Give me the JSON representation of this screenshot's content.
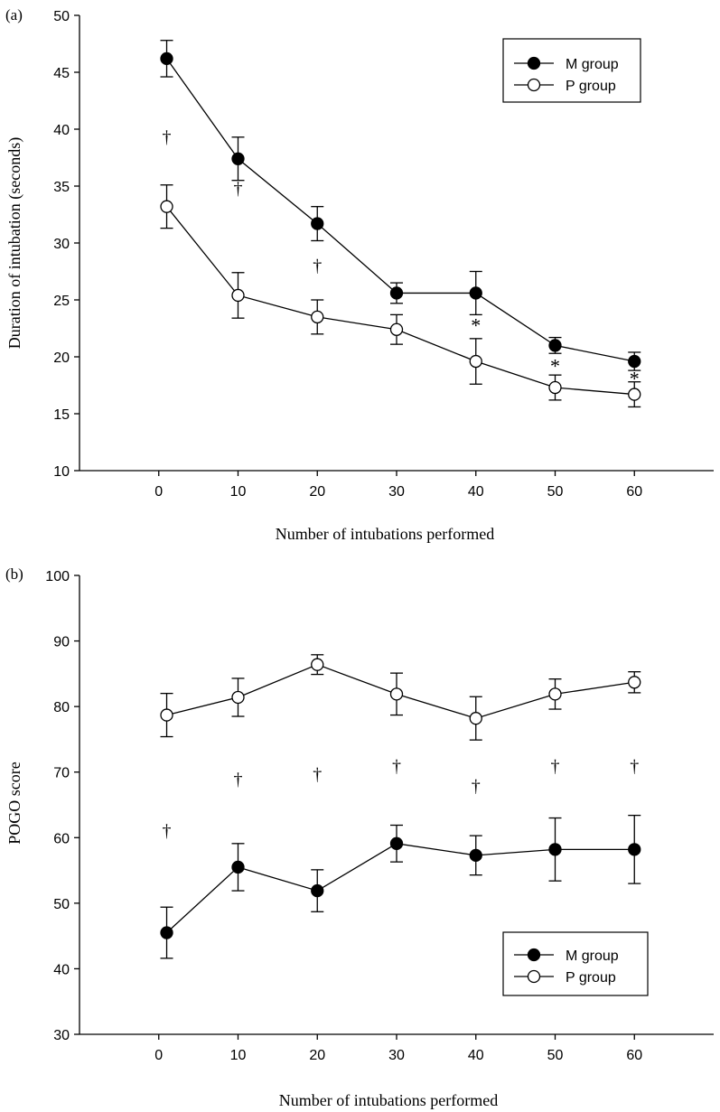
{
  "chart_data": [
    {
      "type": "line",
      "panel_label": "(a)",
      "xlabel": "Number of intubations performed",
      "ylabel": "Duration of intubation (seconds)",
      "xlim": [
        -10,
        70
      ],
      "ylim": [
        10,
        50
      ],
      "x_ticks": [
        0,
        10,
        20,
        30,
        40,
        50,
        60
      ],
      "y_ticks": [
        10,
        15,
        20,
        25,
        30,
        35,
        40,
        45,
        50
      ],
      "legend_position": "top-right",
      "grid": false,
      "series": [
        {
          "name": "M group",
          "marker": "filled-circle",
          "points": [
            {
              "x": 1,
              "y": 46.2,
              "err": 1.6
            },
            {
              "x": 10,
              "y": 37.4,
              "err": 1.9
            },
            {
              "x": 20,
              "y": 31.7,
              "err": 1.5
            },
            {
              "x": 30,
              "y": 25.6,
              "err": 0.9
            },
            {
              "x": 40,
              "y": 25.6,
              "err": 1.9
            },
            {
              "x": 50,
              "y": 21.0,
              "err": 0.7
            },
            {
              "x": 60,
              "y": 19.6,
              "err": 0.8
            }
          ]
        },
        {
          "name": "P group",
          "marker": "open-circle",
          "points": [
            {
              "x": 1,
              "y": 33.2,
              "err": 1.9
            },
            {
              "x": 10,
              "y": 25.4,
              "err": 2.0
            },
            {
              "x": 20,
              "y": 23.5,
              "err": 1.5
            },
            {
              "x": 30,
              "y": 22.4,
              "err": 1.3
            },
            {
              "x": 40,
              "y": 19.6,
              "err": 2.0
            },
            {
              "x": 50,
              "y": 17.3,
              "err": 1.1
            },
            {
              "x": 60,
              "y": 16.7,
              "err": 1.1
            }
          ]
        }
      ],
      "annotations": [
        {
          "text": "†",
          "x": 1,
          "y": 38.8
        },
        {
          "text": "†",
          "x": 10,
          "y": 34.3
        },
        {
          "text": "†",
          "x": 20,
          "y": 27.5
        },
        {
          "text": "*",
          "x": 40,
          "y": 22.2
        },
        {
          "text": "*",
          "x": 50,
          "y": 18.6
        },
        {
          "text": "*",
          "x": 60,
          "y": 17.5
        }
      ]
    },
    {
      "type": "line",
      "panel_label": "(b)",
      "xlabel": "Number of intubations performed",
      "ylabel": "POGO score",
      "xlim": [
        -10,
        70
      ],
      "ylim": [
        30,
        100
      ],
      "x_ticks": [
        0,
        10,
        20,
        30,
        40,
        50,
        60
      ],
      "y_ticks": [
        30,
        40,
        50,
        60,
        70,
        80,
        90,
        100
      ],
      "legend_position": "bottom-right",
      "grid": false,
      "series": [
        {
          "name": "M group",
          "marker": "filled-circle",
          "points": [
            {
              "x": 1,
              "y": 45.5,
              "err": 3.9
            },
            {
              "x": 10,
              "y": 55.5,
              "err": 3.6
            },
            {
              "x": 20,
              "y": 51.9,
              "err": 3.2
            },
            {
              "x": 30,
              "y": 59.1,
              "err": 2.8
            },
            {
              "x": 40,
              "y": 57.3,
              "err": 3.0
            },
            {
              "x": 50,
              "y": 58.2,
              "err": 4.8
            },
            {
              "x": 60,
              "y": 58.2,
              "err": 5.2
            }
          ]
        },
        {
          "name": "P group",
          "marker": "open-circle",
          "points": [
            {
              "x": 1,
              "y": 78.7,
              "err": 3.3
            },
            {
              "x": 10,
              "y": 81.4,
              "err": 2.9
            },
            {
              "x": 20,
              "y": 86.4,
              "err": 1.5
            },
            {
              "x": 30,
              "y": 81.9,
              "err": 3.2
            },
            {
              "x": 40,
              "y": 78.2,
              "err": 3.3
            },
            {
              "x": 50,
              "y": 81.9,
              "err": 2.3
            },
            {
              "x": 60,
              "y": 83.7,
              "err": 1.6
            }
          ]
        }
      ],
      "annotations": [
        {
          "text": "†",
          "x": 1,
          "y": 60.2
        },
        {
          "text": "†",
          "x": 10,
          "y": 68.0
        },
        {
          "text": "†",
          "x": 20,
          "y": 68.8
        },
        {
          "text": "†",
          "x": 30,
          "y": 70.0
        },
        {
          "text": "†",
          "x": 40,
          "y": 67.0
        },
        {
          "text": "†",
          "x": 50,
          "y": 70.0
        },
        {
          "text": "†",
          "x": 60,
          "y": 70.0
        }
      ]
    }
  ]
}
